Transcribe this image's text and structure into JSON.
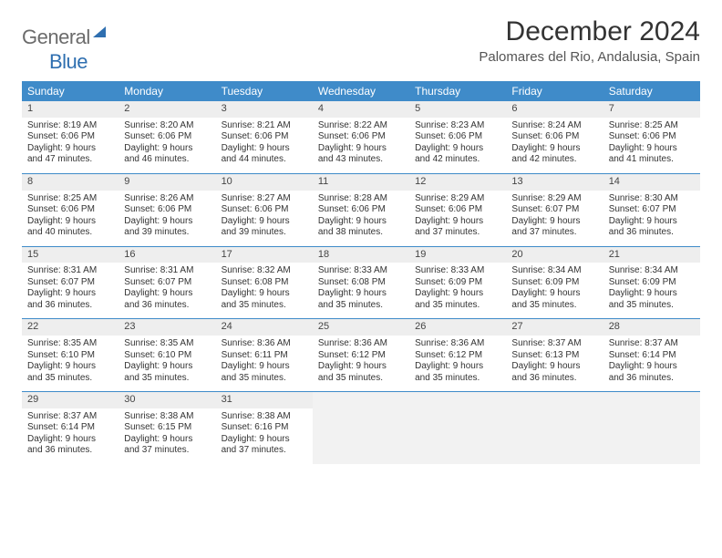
{
  "logo": {
    "text1": "General",
    "text2": "Blue"
  },
  "title": "December 2024",
  "location": "Palomares del Rio, Andalusia, Spain",
  "colors": {
    "header_bg": "#3f8bc9",
    "header_text": "#ffffff",
    "border": "#3f8bc9",
    "daynum_bg": "#eeeeee",
    "empty_bg": "#f2f2f2",
    "logo_gray": "#6b6b6b",
    "logo_blue": "#2f6fb0",
    "body_text": "#333333"
  },
  "day_headers": [
    "Sunday",
    "Monday",
    "Tuesday",
    "Wednesday",
    "Thursday",
    "Friday",
    "Saturday"
  ],
  "weeks": [
    [
      {
        "n": "1",
        "sr": "8:19 AM",
        "ss": "6:06 PM",
        "dl": "9 hours and 47 minutes."
      },
      {
        "n": "2",
        "sr": "8:20 AM",
        "ss": "6:06 PM",
        "dl": "9 hours and 46 minutes."
      },
      {
        "n": "3",
        "sr": "8:21 AM",
        "ss": "6:06 PM",
        "dl": "9 hours and 44 minutes."
      },
      {
        "n": "4",
        "sr": "8:22 AM",
        "ss": "6:06 PM",
        "dl": "9 hours and 43 minutes."
      },
      {
        "n": "5",
        "sr": "8:23 AM",
        "ss": "6:06 PM",
        "dl": "9 hours and 42 minutes."
      },
      {
        "n": "6",
        "sr": "8:24 AM",
        "ss": "6:06 PM",
        "dl": "9 hours and 42 minutes."
      },
      {
        "n": "7",
        "sr": "8:25 AM",
        "ss": "6:06 PM",
        "dl": "9 hours and 41 minutes."
      }
    ],
    [
      {
        "n": "8",
        "sr": "8:25 AM",
        "ss": "6:06 PM",
        "dl": "9 hours and 40 minutes."
      },
      {
        "n": "9",
        "sr": "8:26 AM",
        "ss": "6:06 PM",
        "dl": "9 hours and 39 minutes."
      },
      {
        "n": "10",
        "sr": "8:27 AM",
        "ss": "6:06 PM",
        "dl": "9 hours and 39 minutes."
      },
      {
        "n": "11",
        "sr": "8:28 AM",
        "ss": "6:06 PM",
        "dl": "9 hours and 38 minutes."
      },
      {
        "n": "12",
        "sr": "8:29 AM",
        "ss": "6:06 PM",
        "dl": "9 hours and 37 minutes."
      },
      {
        "n": "13",
        "sr": "8:29 AM",
        "ss": "6:07 PM",
        "dl": "9 hours and 37 minutes."
      },
      {
        "n": "14",
        "sr": "8:30 AM",
        "ss": "6:07 PM",
        "dl": "9 hours and 36 minutes."
      }
    ],
    [
      {
        "n": "15",
        "sr": "8:31 AM",
        "ss": "6:07 PM",
        "dl": "9 hours and 36 minutes."
      },
      {
        "n": "16",
        "sr": "8:31 AM",
        "ss": "6:07 PM",
        "dl": "9 hours and 36 minutes."
      },
      {
        "n": "17",
        "sr": "8:32 AM",
        "ss": "6:08 PM",
        "dl": "9 hours and 35 minutes."
      },
      {
        "n": "18",
        "sr": "8:33 AM",
        "ss": "6:08 PM",
        "dl": "9 hours and 35 minutes."
      },
      {
        "n": "19",
        "sr": "8:33 AM",
        "ss": "6:09 PM",
        "dl": "9 hours and 35 minutes."
      },
      {
        "n": "20",
        "sr": "8:34 AM",
        "ss": "6:09 PM",
        "dl": "9 hours and 35 minutes."
      },
      {
        "n": "21",
        "sr": "8:34 AM",
        "ss": "6:09 PM",
        "dl": "9 hours and 35 minutes."
      }
    ],
    [
      {
        "n": "22",
        "sr": "8:35 AM",
        "ss": "6:10 PM",
        "dl": "9 hours and 35 minutes."
      },
      {
        "n": "23",
        "sr": "8:35 AM",
        "ss": "6:10 PM",
        "dl": "9 hours and 35 minutes."
      },
      {
        "n": "24",
        "sr": "8:36 AM",
        "ss": "6:11 PM",
        "dl": "9 hours and 35 minutes."
      },
      {
        "n": "25",
        "sr": "8:36 AM",
        "ss": "6:12 PM",
        "dl": "9 hours and 35 minutes."
      },
      {
        "n": "26",
        "sr": "8:36 AM",
        "ss": "6:12 PM",
        "dl": "9 hours and 35 minutes."
      },
      {
        "n": "27",
        "sr": "8:37 AM",
        "ss": "6:13 PM",
        "dl": "9 hours and 36 minutes."
      },
      {
        "n": "28",
        "sr": "8:37 AM",
        "ss": "6:14 PM",
        "dl": "9 hours and 36 minutes."
      }
    ],
    [
      {
        "n": "29",
        "sr": "8:37 AM",
        "ss": "6:14 PM",
        "dl": "9 hours and 36 minutes."
      },
      {
        "n": "30",
        "sr": "8:38 AM",
        "ss": "6:15 PM",
        "dl": "9 hours and 37 minutes."
      },
      {
        "n": "31",
        "sr": "8:38 AM",
        "ss": "6:16 PM",
        "dl": "9 hours and 37 minutes."
      },
      null,
      null,
      null,
      null
    ]
  ],
  "labels": {
    "sunrise": "Sunrise: ",
    "sunset": "Sunset: ",
    "daylight": "Daylight: "
  }
}
